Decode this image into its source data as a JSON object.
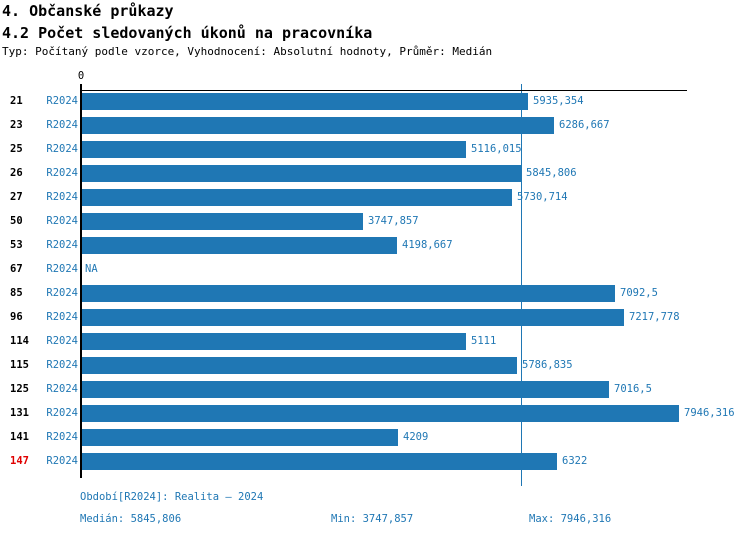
{
  "header": {
    "title1": "4. Občanské průkazy",
    "title2": "4.2 Počet sledovaných úkonů na pracovníka",
    "subtitle": "Typ: Počítaný podle vzorce, Vyhodnocení: Absolutní hodnoty, Průměr: Medián"
  },
  "axis": {
    "zero_label": "0"
  },
  "colors": {
    "bar_blue": "#1f77b4",
    "text_blue": "#1f77b4",
    "highlight_red": "#e00000",
    "axis_black": "#000000"
  },
  "footer": {
    "period": "Období[R2024]: Realita – 2024",
    "median": "Medián: 5845,806",
    "min": "Min: 3747,857",
    "max": "Max: 7946,316"
  },
  "chart_data": {
    "type": "bar",
    "orientation": "horizontal",
    "title": "4.2 Počet sledovaných úkonů na pracovníka",
    "series_name": "R2024",
    "categories": [
      "21",
      "23",
      "25",
      "26",
      "27",
      "50",
      "53",
      "67",
      "85",
      "96",
      "114",
      "115",
      "125",
      "131",
      "141",
      "147"
    ],
    "values": [
      5935.354,
      6286.667,
      5116.015,
      5845.806,
      5730.714,
      3747.857,
      4198.667,
      null,
      7092.5,
      7217.778,
      5111,
      5786.835,
      7016.5,
      7946.316,
      4209,
      6322
    ],
    "value_labels": [
      "5935,354",
      "6286,667",
      "5116,015",
      "5845,806",
      "5730,714",
      "3747,857",
      "4198,667",
      "NA",
      "7092,5",
      "7217,778",
      "5111",
      "5786,835",
      "7016,5",
      "7946,316",
      "4209",
      "6322"
    ],
    "period_label": "R2024",
    "highlighted_category": "147",
    "na_label": "NA",
    "median": 5845.806,
    "min": 3747.857,
    "max": 7946.316,
    "xlim": [
      0,
      8000
    ],
    "median_line": true,
    "grid": false,
    "legend": false
  }
}
